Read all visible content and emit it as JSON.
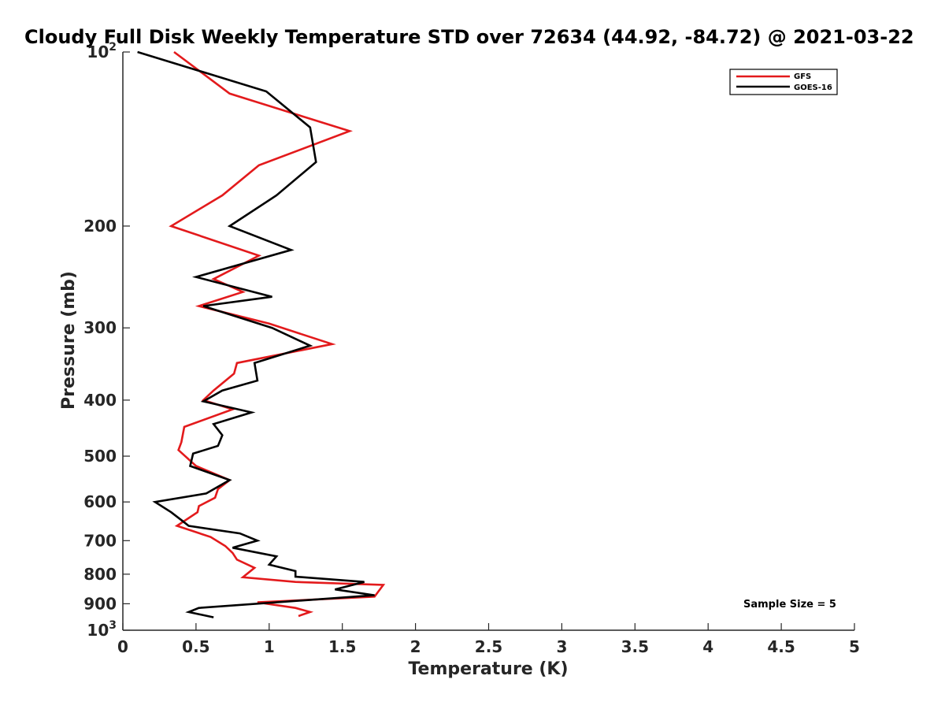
{
  "chart_data": {
    "type": "line",
    "title": "Cloudy Full Disk Weekly Temperature STD over 72634 (44.92, -84.72) @ 2021-03-22",
    "xlabel": "Temperature (K)",
    "ylabel": "Pressure (mb)",
    "xlim": [
      0,
      5
    ],
    "ylim": [
      100,
      1000
    ],
    "yscale": "log",
    "y_reversed": true,
    "grid": false,
    "legend_position": "top-right",
    "x_ticks": [
      0,
      0.5,
      1,
      1.5,
      2,
      2.5,
      3,
      3.5,
      4,
      4.5,
      5
    ],
    "x_tick_labels": [
      "0",
      "0.5",
      "1",
      "1.5",
      "2",
      "2.5",
      "3",
      "3.5",
      "4",
      "4.5",
      "5"
    ],
    "y_ticks": [
      100,
      200,
      300,
      400,
      500,
      600,
      700,
      800,
      900,
      1000
    ],
    "y_tick_labels": [
      {
        "base": "10",
        "exp": "2"
      },
      {
        "base": "200",
        "exp": ""
      },
      {
        "base": "300",
        "exp": ""
      },
      {
        "base": "400",
        "exp": ""
      },
      {
        "base": "500",
        "exp": ""
      },
      {
        "base": "600",
        "exp": ""
      },
      {
        "base": "700",
        "exp": ""
      },
      {
        "base": "800",
        "exp": ""
      },
      {
        "base": "900",
        "exp": ""
      },
      {
        "base": "10",
        "exp": "3"
      }
    ],
    "annotation": "Sample Size = 5",
    "series": [
      {
        "name": "GFS",
        "color": "#e31a1c",
        "points": [
          [
            0.35,
            100
          ],
          [
            0.73,
            118
          ],
          [
            1.55,
            137
          ],
          [
            0.93,
            157
          ],
          [
            0.68,
            177
          ],
          [
            0.33,
            200
          ],
          [
            0.93,
            225
          ],
          [
            0.62,
            247
          ],
          [
            0.82,
            260
          ],
          [
            0.52,
            275
          ],
          [
            1.0,
            295
          ],
          [
            1.43,
            320
          ],
          [
            0.78,
            345
          ],
          [
            0.76,
            360
          ],
          [
            0.62,
            385
          ],
          [
            0.55,
            400
          ],
          [
            0.75,
            415
          ],
          [
            0.42,
            445
          ],
          [
            0.4,
            473
          ],
          [
            0.38,
            488
          ],
          [
            0.5,
            520
          ],
          [
            0.73,
            550
          ],
          [
            0.65,
            570
          ],
          [
            0.63,
            590
          ],
          [
            0.52,
            610
          ],
          [
            0.51,
            625
          ],
          [
            0.37,
            660
          ],
          [
            0.6,
            690
          ],
          [
            0.7,
            715
          ],
          [
            0.75,
            735
          ],
          [
            0.78,
            755
          ],
          [
            0.9,
            780
          ],
          [
            0.82,
            810
          ],
          [
            1.18,
            825
          ],
          [
            1.78,
            835
          ],
          [
            1.72,
            875
          ],
          [
            0.92,
            895
          ],
          [
            1.18,
            915
          ],
          [
            1.28,
            930
          ],
          [
            1.2,
            945
          ]
        ]
      },
      {
        "name": "GOES-16",
        "color": "#000000",
        "points": [
          [
            0.1,
            100
          ],
          [
            0.98,
            117
          ],
          [
            1.28,
            135
          ],
          [
            1.32,
            155
          ],
          [
            1.05,
            177
          ],
          [
            0.73,
            200
          ],
          [
            1.15,
            220
          ],
          [
            0.5,
            245
          ],
          [
            1.02,
            265
          ],
          [
            0.55,
            275
          ],
          [
            1.02,
            300
          ],
          [
            1.28,
            322
          ],
          [
            0.9,
            345
          ],
          [
            0.92,
            370
          ],
          [
            0.68,
            385
          ],
          [
            0.55,
            402
          ],
          [
            0.88,
            420
          ],
          [
            0.62,
            440
          ],
          [
            0.68,
            460
          ],
          [
            0.65,
            480
          ],
          [
            0.48,
            495
          ],
          [
            0.46,
            520
          ],
          [
            0.73,
            550
          ],
          [
            0.57,
            580
          ],
          [
            0.22,
            600
          ],
          [
            0.33,
            625
          ],
          [
            0.4,
            645
          ],
          [
            0.45,
            660
          ],
          [
            0.8,
            680
          ],
          [
            0.92,
            700
          ],
          [
            0.75,
            720
          ],
          [
            1.05,
            745
          ],
          [
            1.0,
            770
          ],
          [
            1.18,
            790
          ],
          [
            1.18,
            808
          ],
          [
            1.65,
            825
          ],
          [
            1.45,
            850
          ],
          [
            1.72,
            870
          ],
          [
            0.52,
            915
          ],
          [
            0.45,
            930
          ],
          [
            0.62,
            950
          ]
        ]
      }
    ]
  }
}
